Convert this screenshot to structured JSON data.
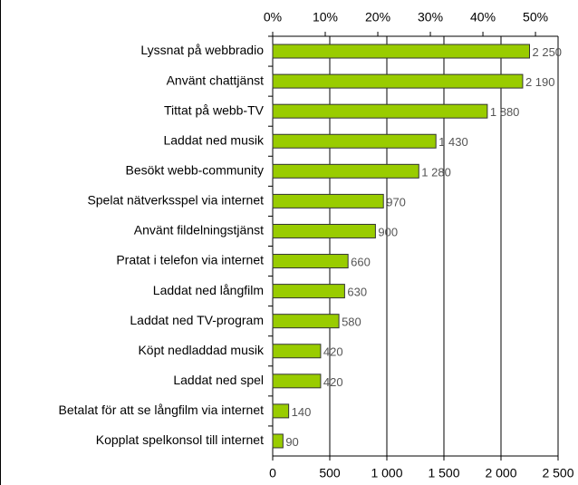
{
  "chart_data": {
    "type": "bar",
    "orientation": "horizontal",
    "categories": [
      "Lyssnat på webbradio",
      "Använt chattjänst",
      "Tittat på webb-TV",
      "Laddat ned musik",
      "Besökt webb-community",
      "Spelat nätverksspel via internet",
      "Använt fildelningstjänst",
      "Pratat i telefon via internet",
      "Laddat ned långfilm",
      "Laddat ned TV-program",
      "Köpt nedladdad musik",
      "Laddat ned spel",
      "Betalat för att se långfilm via internet",
      "Kopplat spelkonsol till internet"
    ],
    "values": [
      2250,
      2190,
      1880,
      1430,
      1280,
      970,
      900,
      660,
      630,
      580,
      420,
      420,
      140,
      90
    ],
    "value_labels": [
      "2 250",
      "2 190",
      "1 880",
      "1 430",
      "1 280",
      "970",
      "900",
      "660",
      "630",
      "580",
      "420",
      "420",
      "140",
      "90"
    ],
    "color": "#99cc00",
    "xlim": [
      0,
      2500
    ],
    "xticks": [
      0,
      500,
      {
        "value": 1000,
        "label": "1 000"
      },
      {
        "value": 1500,
        "label": "1 500"
      },
      {
        "value": 2000,
        "label": "2 000"
      },
      {
        "value": 2500,
        "label": "2 500"
      }
    ],
    "x2lim": [
      0,
      54.3
    ],
    "x2ticks": [
      {
        "value": 0,
        "label": "0%"
      },
      {
        "value": 10,
        "label": "10%"
      },
      {
        "value": 20,
        "label": "20%"
      },
      {
        "value": 30,
        "label": "30%"
      },
      {
        "value": 40,
        "label": "40%"
      },
      {
        "value": 50,
        "label": "50%"
      }
    ],
    "grid": true
  }
}
